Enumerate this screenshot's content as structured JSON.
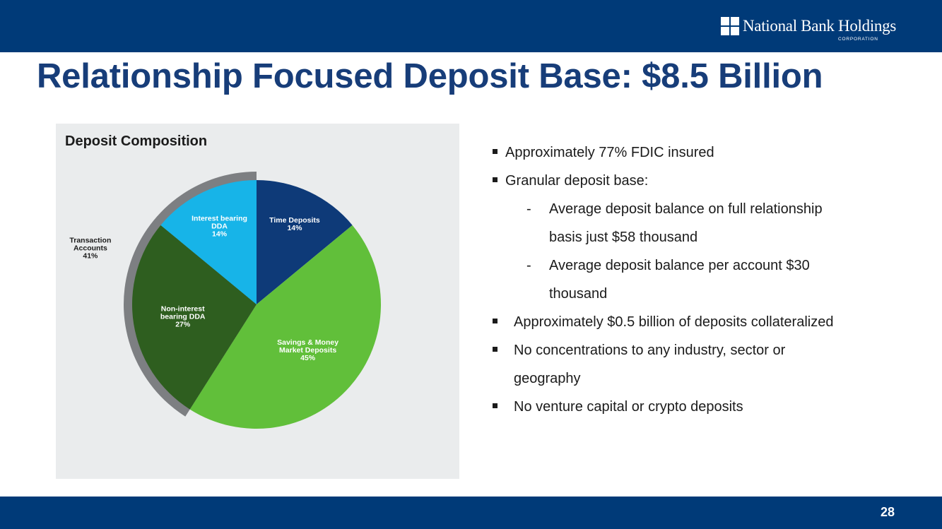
{
  "logo": {
    "name": "National Bank Holdings",
    "sub": "CORPORATION"
  },
  "slide": {
    "title": "Relationship Focused Deposit Base: $8.5 Billion",
    "page_number": "28"
  },
  "colors": {
    "brand_navy": "#003a78",
    "title_blue": "#173d79",
    "panel_bg": "#eaeced"
  },
  "chart_data": {
    "type": "pie",
    "title": "Deposit Composition",
    "slices": [
      {
        "label": "Time Deposits",
        "value": 14,
        "pct_label": "14%",
        "color": "#0e3a78"
      },
      {
        "label": "Savings & Money Market Deposits",
        "value": 45,
        "pct_label": "45%",
        "color": "#61bf3a"
      },
      {
        "label": "Non-interest bearing DDA",
        "value": 27,
        "pct_label": "27%",
        "color": "#2e5e1f"
      },
      {
        "label": "Interest bearing DDA",
        "value": 14,
        "pct_label": "14%",
        "color": "#17b4e8"
      }
    ],
    "group": {
      "label": "Transaction Accounts",
      "value": 41,
      "pct_label": "41%",
      "members": [
        "Non-interest bearing DDA",
        "Interest bearing DDA"
      ],
      "color": "#7d7f82"
    },
    "start_angle_deg": 0,
    "direction": "clockwise"
  },
  "bullets": [
    {
      "level": 1,
      "text": "Approximately 77% FDIC insured"
    },
    {
      "level": 1,
      "text": "Granular deposit base:"
    },
    {
      "level": 2,
      "text": "Average deposit balance on full relationship"
    },
    {
      "level": 2,
      "text": "basis just $58 thousand",
      "continuation": true
    },
    {
      "level": 2,
      "text": "Average deposit balance per account $30"
    },
    {
      "level": 2,
      "text": "thousand",
      "continuation": true
    },
    {
      "level": 1,
      "text": "Approximately $0.5 billion of deposits collateralized",
      "wide": true
    },
    {
      "level": 1,
      "text": "No concentrations to any industry, sector or",
      "wide": true
    },
    {
      "level": 1,
      "text": "geography",
      "wide": true,
      "continuation": true
    },
    {
      "level": 1,
      "text": "No venture capital or crypto deposits",
      "wide": true
    }
  ],
  "dash_char": "-"
}
